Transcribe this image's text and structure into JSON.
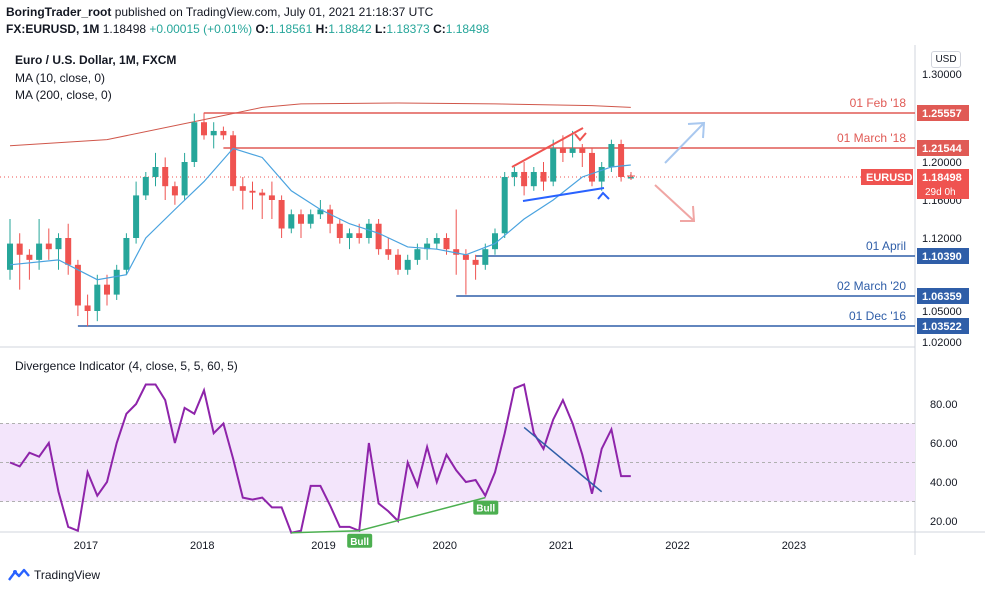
{
  "header": {
    "author": "BoringTrader_root",
    "published_text": "published on TradingView.com, July 01, 2021 21:18:37 UTC",
    "symbol": "FX:EURUSD, 1M",
    "last": "1.18498",
    "change": "+0.00015 (+0.01%)",
    "o_label": "O:",
    "o": "1.18561",
    "h_label": "H:",
    "h": "1.18842",
    "l_label": "L:",
    "l": "1.18373",
    "c_label": "C:",
    "c": "1.18498"
  },
  "legend": {
    "title": "Euro / U.S. Dollar, 1M, FXCM",
    "ma10": "MA (10, close, 0)",
    "ma200": "MA (200, close, 0)",
    "indicator": "Divergence Indicator (4, close, 5, 5, 60, 5)"
  },
  "currency": "USD",
  "footer": {
    "brand": "TradingView"
  },
  "colors": {
    "up": "#26a69a",
    "down": "#ef5350",
    "ma10": "#4aa3df",
    "ma200": "#d0574b",
    "indicator": "#8e24aa",
    "bull": "#4caf50",
    "level_red": "#e05a55",
    "level_blue": "#2f5ea8"
  },
  "chart_data": [
    {
      "type": "candlestick",
      "title": "Euro / U.S. Dollar, 1M, FXCM",
      "y_ticks": [
        1.3,
        1.2,
        1.16,
        1.12,
        1.05,
        1.02
      ],
      "y_tick_labels": [
        "1.30000",
        "1.20000",
        "1.16000",
        "1.12000",
        "1.05000",
        "1.02000"
      ],
      "x_tick_labels": [
        "2017",
        "2018",
        "2019",
        "2020",
        "2021",
        "2022",
        "2023"
      ],
      "candles": [
        {
          "o": 1.09,
          "h": 1.14,
          "l": 1.08,
          "c": 1.115
        },
        {
          "o": 1.115,
          "h": 1.125,
          "l": 1.07,
          "c": 1.105
        },
        {
          "o": 1.105,
          "h": 1.11,
          "l": 1.08,
          "c": 1.1
        },
        {
          "o": 1.1,
          "h": 1.14,
          "l": 1.09,
          "c": 1.115
        },
        {
          "o": 1.115,
          "h": 1.13,
          "l": 1.1,
          "c": 1.11
        },
        {
          "o": 1.11,
          "h": 1.125,
          "l": 1.09,
          "c": 1.12
        },
        {
          "o": 1.12,
          "h": 1.135,
          "l": 1.085,
          "c": 1.095
        },
        {
          "o": 1.095,
          "h": 1.1,
          "l": 1.045,
          "c": 1.055
        },
        {
          "o": 1.055,
          "h": 1.065,
          "l": 1.035,
          "c": 1.05
        },
        {
          "o": 1.05,
          "h": 1.085,
          "l": 1.04,
          "c": 1.075
        },
        {
          "o": 1.075,
          "h": 1.085,
          "l": 1.055,
          "c": 1.065
        },
        {
          "o": 1.065,
          "h": 1.095,
          "l": 1.06,
          "c": 1.09
        },
        {
          "o": 1.09,
          "h": 1.125,
          "l": 1.085,
          "c": 1.12
        },
        {
          "o": 1.12,
          "h": 1.18,
          "l": 1.115,
          "c": 1.165
        },
        {
          "o": 1.165,
          "h": 1.19,
          "l": 1.16,
          "c": 1.185
        },
        {
          "o": 1.185,
          "h": 1.21,
          "l": 1.175,
          "c": 1.195
        },
        {
          "o": 1.195,
          "h": 1.205,
          "l": 1.16,
          "c": 1.175
        },
        {
          "o": 1.175,
          "h": 1.18,
          "l": 1.155,
          "c": 1.165
        },
        {
          "o": 1.165,
          "h": 1.21,
          "l": 1.16,
          "c": 1.2
        },
        {
          "o": 1.2,
          "h": 1.255,
          "l": 1.195,
          "c": 1.245
        },
        {
          "o": 1.245,
          "h": 1.256,
          "l": 1.225,
          "c": 1.23
        },
        {
          "o": 1.23,
          "h": 1.245,
          "l": 1.215,
          "c": 1.235
        },
        {
          "o": 1.235,
          "h": 1.24,
          "l": 1.225,
          "c": 1.23
        },
        {
          "o": 1.23,
          "h": 1.235,
          "l": 1.17,
          "c": 1.175
        },
        {
          "o": 1.175,
          "h": 1.185,
          "l": 1.15,
          "c": 1.17
        },
        {
          "o": 1.17,
          "h": 1.18,
          "l": 1.15,
          "c": 1.168
        },
        {
          "o": 1.168,
          "h": 1.172,
          "l": 1.14,
          "c": 1.165
        },
        {
          "o": 1.165,
          "h": 1.18,
          "l": 1.14,
          "c": 1.16
        },
        {
          "o": 1.16,
          "h": 1.165,
          "l": 1.12,
          "c": 1.13
        },
        {
          "o": 1.13,
          "h": 1.15,
          "l": 1.125,
          "c": 1.145
        },
        {
          "o": 1.145,
          "h": 1.15,
          "l": 1.12,
          "c": 1.135
        },
        {
          "o": 1.135,
          "h": 1.15,
          "l": 1.13,
          "c": 1.145
        },
        {
          "o": 1.145,
          "h": 1.16,
          "l": 1.14,
          "c": 1.15
        },
        {
          "o": 1.15,
          "h": 1.155,
          "l": 1.125,
          "c": 1.135
        },
        {
          "o": 1.135,
          "h": 1.14,
          "l": 1.115,
          "c": 1.12
        },
        {
          "o": 1.12,
          "h": 1.13,
          "l": 1.11,
          "c": 1.125
        },
        {
          "o": 1.125,
          "h": 1.135,
          "l": 1.115,
          "c": 1.12
        },
        {
          "o": 1.12,
          "h": 1.14,
          "l": 1.115,
          "c": 1.135
        },
        {
          "o": 1.135,
          "h": 1.14,
          "l": 1.105,
          "c": 1.11
        },
        {
          "o": 1.11,
          "h": 1.12,
          "l": 1.1,
          "c": 1.105
        },
        {
          "o": 1.105,
          "h": 1.11,
          "l": 1.085,
          "c": 1.09
        },
        {
          "o": 1.09,
          "h": 1.105,
          "l": 1.085,
          "c": 1.1
        },
        {
          "o": 1.1,
          "h": 1.115,
          "l": 1.095,
          "c": 1.11
        },
        {
          "o": 1.11,
          "h": 1.12,
          "l": 1.1,
          "c": 1.115
        },
        {
          "o": 1.115,
          "h": 1.125,
          "l": 1.11,
          "c": 1.12
        },
        {
          "o": 1.12,
          "h": 1.125,
          "l": 1.105,
          "c": 1.11
        },
        {
          "o": 1.11,
          "h": 1.15,
          "l": 1.085,
          "c": 1.105
        },
        {
          "o": 1.105,
          "h": 1.11,
          "l": 1.065,
          "c": 1.1
        },
        {
          "o": 1.1,
          "h": 1.105,
          "l": 1.08,
          "c": 1.095
        },
        {
          "o": 1.095,
          "h": 1.115,
          "l": 1.09,
          "c": 1.11
        },
        {
          "o": 1.11,
          "h": 1.13,
          "l": 1.105,
          "c": 1.125
        },
        {
          "o": 1.125,
          "h": 1.19,
          "l": 1.12,
          "c": 1.185
        },
        {
          "o": 1.185,
          "h": 1.195,
          "l": 1.175,
          "c": 1.19
        },
        {
          "o": 1.19,
          "h": 1.2,
          "l": 1.165,
          "c": 1.175
        },
        {
          "o": 1.175,
          "h": 1.195,
          "l": 1.17,
          "c": 1.19
        },
        {
          "o": 1.19,
          "h": 1.2,
          "l": 1.17,
          "c": 1.18
        },
        {
          "o": 1.18,
          "h": 1.225,
          "l": 1.175,
          "c": 1.215
        },
        {
          "o": 1.215,
          "h": 1.23,
          "l": 1.2,
          "c": 1.21
        },
        {
          "o": 1.21,
          "h": 1.235,
          "l": 1.205,
          "c": 1.215
        },
        {
          "o": 1.215,
          "h": 1.22,
          "l": 1.195,
          "c": 1.21
        },
        {
          "o": 1.21,
          "h": 1.215,
          "l": 1.175,
          "c": 1.18
        },
        {
          "o": 1.18,
          "h": 1.2,
          "l": 1.17,
          "c": 1.195
        },
        {
          "o": 1.195,
          "h": 1.225,
          "l": 1.19,
          "c": 1.22
        },
        {
          "o": 1.22,
          "h": 1.225,
          "l": 1.18,
          "c": 1.185
        },
        {
          "o": 1.185,
          "h": 1.188,
          "l": 1.184,
          "c": 1.185
        }
      ],
      "ma10": [
        {
          "i": 0,
          "v": 1.095
        },
        {
          "i": 5,
          "v": 1.1
        },
        {
          "i": 9,
          "v": 1.08
        },
        {
          "i": 12,
          "v": 1.085
        },
        {
          "i": 14,
          "v": 1.12
        },
        {
          "i": 17,
          "v": 1.15
        },
        {
          "i": 20,
          "v": 1.18
        },
        {
          "i": 23,
          "v": 1.215
        },
        {
          "i": 26,
          "v": 1.205
        },
        {
          "i": 29,
          "v": 1.17
        },
        {
          "i": 32,
          "v": 1.15
        },
        {
          "i": 35,
          "v": 1.135
        },
        {
          "i": 38,
          "v": 1.125
        },
        {
          "i": 41,
          "v": 1.112
        },
        {
          "i": 44,
          "v": 1.11
        },
        {
          "i": 47,
          "v": 1.105
        },
        {
          "i": 50,
          "v": 1.115
        },
        {
          "i": 53,
          "v": 1.14
        },
        {
          "i": 56,
          "v": 1.16
        },
        {
          "i": 59,
          "v": 1.185
        },
        {
          "i": 62,
          "v": 1.195
        },
        {
          "i": 64,
          "v": 1.197
        }
      ],
      "ma200": [
        {
          "i": 0,
          "v": 1.218
        },
        {
          "i": 10,
          "v": 1.225
        },
        {
          "i": 20,
          "v": 1.248
        },
        {
          "i": 26,
          "v": 1.262
        },
        {
          "i": 30,
          "v": 1.266
        },
        {
          "i": 40,
          "v": 1.267
        },
        {
          "i": 50,
          "v": 1.266
        },
        {
          "i": 60,
          "v": 1.264
        },
        {
          "i": 64,
          "v": 1.262
        }
      ],
      "levels": [
        {
          "label": "01 Feb '18",
          "value": 1.25557,
          "price_label": "1.25557",
          "color": "#e05a55",
          "start": 20
        },
        {
          "label": "01 March '18",
          "value": 1.21544,
          "price_label": "1.21544",
          "color": "#e05a55",
          "start": 22
        },
        {
          "label": "01 April",
          "value": 1.1039,
          "price_label": "1.10390",
          "color": "#2f5ea8",
          "start": 48
        },
        {
          "label": "02 March '20",
          "value": 1.06359,
          "price_label": "1.06359",
          "color": "#2f5ea8",
          "start": 46
        },
        {
          "label": "01 Dec '16",
          "value": 1.03522,
          "price_label": "1.03522",
          "color": "#2f5ea8",
          "start": 7
        }
      ],
      "current_price": {
        "name": "EURUSD",
        "value": 1.18498,
        "price_label": "1.18498",
        "countdown": "29d 0h"
      }
    },
    {
      "type": "line",
      "title": "Divergence Indicator (4, close, 5, 5, 60, 5)",
      "y_ticks": [
        80,
        60,
        40,
        20
      ],
      "y_tick_labels": [
        "80.00",
        "60.00",
        "40.00",
        "20.00"
      ],
      "band": [
        30,
        70
      ],
      "mid": 50,
      "values": [
        50,
        48,
        55,
        53,
        60,
        35,
        17,
        15,
        45,
        33,
        40,
        60,
        75,
        80,
        90,
        90,
        82,
        60,
        78,
        75,
        87,
        65,
        70,
        52,
        32,
        31,
        32,
        27,
        27,
        14,
        15,
        38,
        38,
        28,
        17,
        17,
        15,
        60,
        29,
        25,
        20,
        50,
        38,
        58,
        40,
        54,
        46,
        40,
        41,
        33,
        45,
        65,
        88,
        90,
        65,
        57,
        72,
        82,
        70,
        54,
        34,
        57,
        67,
        43,
        43
      ],
      "annotations": [
        {
          "text": "Bull",
          "from_i": 29,
          "from_v": 14,
          "to_i": 36,
          "to_v": 15
        },
        {
          "text": "Bull",
          "from_i": 36,
          "from_v": 15,
          "to_i": 49,
          "to_v": 32
        }
      ],
      "bear_line": {
        "from_i": 53,
        "from_v": 68,
        "to_i": 61,
        "to_v": 35
      }
    }
  ]
}
